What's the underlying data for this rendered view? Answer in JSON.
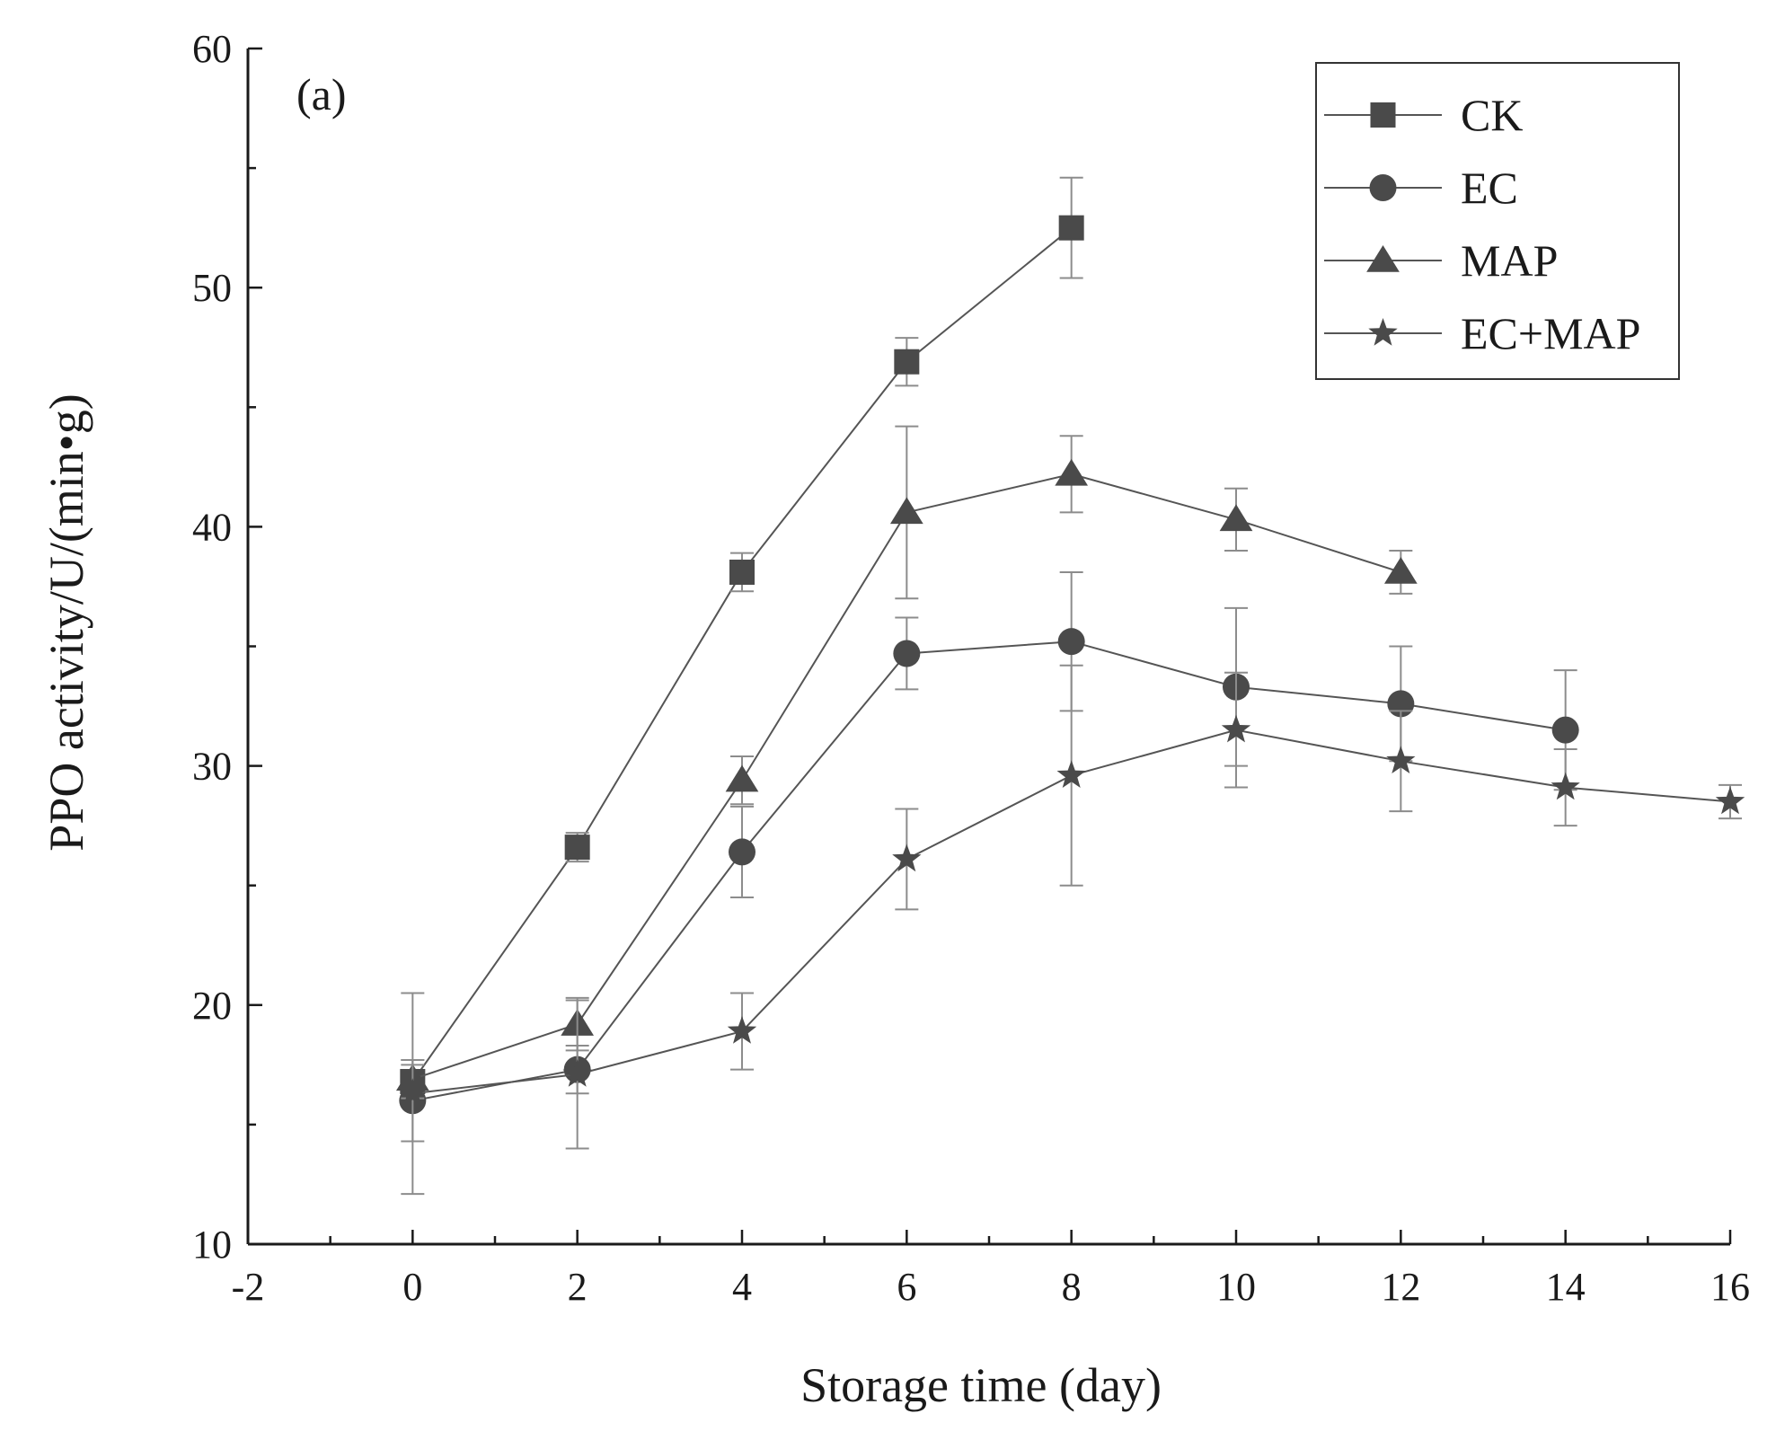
{
  "chart_data": {
    "type": "line",
    "panel_label": "(a)",
    "xlabel": "Storage time (day)",
    "ylabel": "PPO activity/U/(min•g)",
    "xlim": [
      -2,
      16
    ],
    "ylim": [
      10,
      60
    ],
    "xticks": [
      -2,
      0,
      2,
      4,
      6,
      8,
      10,
      12,
      14,
      16
    ],
    "yticks": [
      10,
      20,
      30,
      40,
      50,
      60
    ],
    "legend_position": "top-right",
    "colors": {
      "marker": "#4a4a4a",
      "line": "#555555",
      "error": "#8c8c8c",
      "axis": "#1a1a1a"
    },
    "series": [
      {
        "name": "CK",
        "marker": "square",
        "x": [
          0,
          2,
          4,
          6,
          8
        ],
        "y": [
          16.8,
          26.6,
          38.1,
          46.9,
          52.5
        ],
        "err": [
          0.7,
          0.6,
          0.8,
          1.0,
          2.1
        ]
      },
      {
        "name": "EC",
        "marker": "circle",
        "x": [
          0,
          2,
          4,
          6,
          8,
          10,
          12,
          14
        ],
        "y": [
          16.0,
          17.3,
          26.4,
          34.7,
          35.2,
          33.3,
          32.6,
          31.5
        ],
        "err": [
          1.7,
          1.0,
          1.9,
          1.5,
          2.9,
          3.3,
          2.4,
          2.5
        ]
      },
      {
        "name": "MAP",
        "marker": "triangle",
        "x": [
          0,
          2,
          4,
          6,
          8,
          10,
          12
        ],
        "y": [
          16.9,
          19.2,
          29.4,
          40.6,
          42.2,
          40.3,
          38.1
        ],
        "err": [
          0.8,
          1.1,
          1.0,
          3.6,
          1.6,
          1.3,
          0.9
        ]
      },
      {
        "name": "EC+MAP",
        "marker": "star",
        "x": [
          0,
          2,
          4,
          6,
          8,
          10,
          12,
          14,
          16
        ],
        "y": [
          16.3,
          17.1,
          18.9,
          26.1,
          29.6,
          31.5,
          30.2,
          29.1,
          28.5
        ],
        "err": [
          4.2,
          3.1,
          1.6,
          2.1,
          4.6,
          2.4,
          2.1,
          1.6,
          0.7
        ]
      }
    ]
  }
}
